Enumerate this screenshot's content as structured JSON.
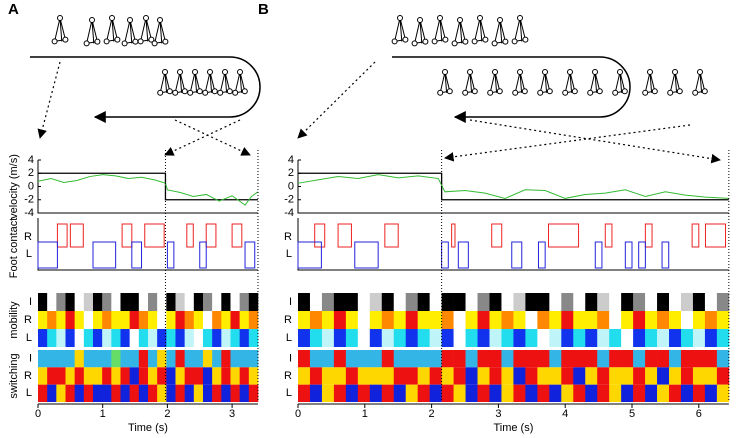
{
  "figure": {
    "palettes": {
      "mobility": [
        "#ffffff",
        "#000000",
        "#888888",
        "#cccccc",
        "#ffee00",
        "#ff8800",
        "#ee1111",
        "#22ddee",
        "#1133ee",
        "#bff4f8"
      ],
      "switching": [
        "#33b5e5",
        "#ffd700",
        "#ee1111",
        "#1122dd",
        "#66dd66"
      ]
    },
    "panels": [
      {
        "label": "A",
        "xlim": [
          0,
          3.4
        ],
        "xticks": [
          0,
          1,
          2,
          3
        ],
        "xlabel": "Time (s)",
        "switch": 1.97,
        "velocity": {
          "ylabel": "velocity (m/s)",
          "ylim": [
            -4,
            4
          ],
          "yticks": [
            -4,
            -2,
            0,
            2,
            4
          ],
          "target": [
            2,
            -2
          ],
          "t": [
            0,
            0.2,
            0.4,
            0.6,
            0.8,
            1.0,
            1.2,
            1.4,
            1.6,
            1.8,
            1.97,
            2.0,
            2.2,
            2.4,
            2.6,
            2.8,
            3.0,
            3.2,
            3.3,
            3.4
          ],
          "v": [
            0.8,
            1.2,
            0.6,
            0.9,
            1.5,
            1.8,
            1.6,
            1.2,
            1.4,
            1.0,
            0.5,
            -0.5,
            -0.9,
            -1.5,
            -1.2,
            -2.2,
            -1.4,
            -2.8,
            -1.5,
            -0.8
          ]
        },
        "foot": {
          "ylabel": "Foot contact",
          "rows": [
            "R",
            "L"
          ],
          "R": [
            [
              0.3,
              0.45
            ],
            [
              0.5,
              0.7
            ],
            [
              1.3,
              1.45
            ],
            [
              1.65,
              1.95
            ],
            [
              2.3,
              2.4
            ],
            [
              2.6,
              2.75
            ],
            [
              3.0,
              3.15
            ]
          ],
          "L": [
            [
              0,
              0.3
            ],
            [
              0.85,
              1.2
            ],
            [
              1.45,
              1.6
            ],
            [
              2.0,
              2.1
            ],
            [
              2.5,
              2.6
            ],
            [
              3.2,
              3.35
            ]
          ]
        },
        "mobility": {
          "ylabel": "mobility",
          "rows": [
            "I",
            "R",
            "L"
          ],
          "codes": [
            [
              1,
              0,
              2,
              1,
              0,
              3,
              1,
              2,
              0,
              1,
              1,
              0,
              2,
              0,
              1,
              3,
              0,
              1,
              2,
              0,
              1,
              0,
              2,
              1
            ],
            [
              4,
              5,
              4,
              6,
              4,
              0,
              4,
              5,
              4,
              4,
              6,
              5,
              4,
              0,
              4,
              6,
              5,
              4,
              0,
              5,
              4,
              6,
              4,
              5
            ],
            [
              8,
              7,
              9,
              8,
              0,
              7,
              8,
              9,
              7,
              8,
              0,
              7,
              9,
              8,
              7,
              8,
              9,
              0,
              7,
              8,
              9,
              7,
              8,
              7
            ]
          ]
        },
        "switching": {
          "ylabel": "switching",
          "rows": [
            "I",
            "R",
            "L"
          ],
          "codes": [
            [
              0,
              0,
              0,
              0,
              1,
              0,
              0,
              0,
              4,
              0,
              0,
              2,
              0,
              1,
              0,
              2,
              0,
              0,
              1,
              0,
              2,
              0,
              0,
              0
            ],
            [
              1,
              2,
              2,
              1,
              2,
              1,
              1,
              2,
              1,
              2,
              3,
              2,
              1,
              2,
              3,
              1,
              2,
              2,
              3,
              1,
              2,
              1,
              2,
              1
            ],
            [
              2,
              3,
              1,
              2,
              3,
              2,
              3,
              3,
              2,
              3,
              2,
              3,
              2,
              1,
              3,
              2,
              3,
              1,
              3,
              2,
              3,
              2,
              3,
              2
            ]
          ]
        }
      },
      {
        "label": "B",
        "xlim": [
          0,
          6.45
        ],
        "xticks": [
          0,
          1,
          2,
          3,
          4,
          5,
          6
        ],
        "xlabel": "Time (s)",
        "switch": 2.15,
        "velocity": {
          "ylim": [
            -4,
            4
          ],
          "yticks": [
            -4,
            -2,
            0,
            2,
            4
          ],
          "target": [
            2,
            -2
          ],
          "t": [
            0,
            0.3,
            0.6,
            0.9,
            1.2,
            1.5,
            1.8,
            2.1,
            2.2,
            2.5,
            2.8,
            3.1,
            3.4,
            3.7,
            4.0,
            4.3,
            4.6,
            4.9,
            5.2,
            5.5,
            5.8,
            6.1,
            6.45
          ],
          "v": [
            0.5,
            1.0,
            1.5,
            1.2,
            1.8,
            1.3,
            1.6,
            1.2,
            -0.8,
            -0.6,
            -1.0,
            -1.8,
            -0.5,
            -0.6,
            -1.8,
            -1.2,
            -1.0,
            -0.5,
            -1.5,
            -0.8,
            -1.3,
            -1.6,
            -1.8
          ]
        },
        "foot": {
          "rows": [
            "R",
            "L"
          ],
          "R": [
            [
              0.25,
              0.4
            ],
            [
              0.6,
              0.8
            ],
            [
              1.3,
              1.5
            ],
            [
              2.3,
              2.35
            ],
            [
              2.9,
              3.05
            ],
            [
              3.75,
              4.2
            ],
            [
              4.6,
              4.7
            ],
            [
              5.2,
              5.3
            ],
            [
              5.9,
              6.0
            ],
            [
              6.1,
              6.4
            ]
          ],
          "L": [
            [
              0,
              0.35
            ],
            [
              0.85,
              1.2
            ],
            [
              2.15,
              2.25
            ],
            [
              2.4,
              2.55
            ],
            [
              3.2,
              3.35
            ],
            [
              3.6,
              3.7
            ],
            [
              4.45,
              4.55
            ],
            [
              4.9,
              5.0
            ],
            [
              5.1,
              5.2
            ],
            [
              5.45,
              5.55
            ]
          ]
        },
        "mobility": {
          "rows": [
            "I",
            "R",
            "L"
          ],
          "codes": [
            [
              1,
              0,
              2,
              1,
              1,
              0,
              3,
              1,
              0,
              2,
              1,
              0,
              1,
              1,
              0,
              2,
              1,
              0,
              3,
              1,
              1,
              0,
              2,
              0,
              1,
              3,
              0,
              1,
              2,
              0,
              1,
              0,
              3,
              1,
              0,
              2
            ],
            [
              4,
              5,
              4,
              6,
              4,
              0,
              4,
              5,
              4,
              6,
              4,
              4,
              5,
              0,
              4,
              6,
              4,
              5,
              4,
              0,
              5,
              4,
              6,
              4,
              4,
              5,
              0,
              4,
              6,
              4,
              5,
              4,
              0,
              4,
              5,
              4
            ],
            [
              8,
              7,
              9,
              8,
              7,
              0,
              8,
              9,
              7,
              8,
              7,
              9,
              8,
              0,
              7,
              8,
              9,
              7,
              8,
              7,
              0,
              9,
              8,
              7,
              8,
              9,
              7,
              0,
              8,
              7,
              9,
              8,
              7,
              9,
              8,
              7
            ]
          ]
        },
        "switching": {
          "rows": [
            "I",
            "R",
            "L"
          ],
          "codes": [
            [
              2,
              0,
              0,
              2,
              0,
              0,
              0,
              2,
              0,
              0,
              0,
              0,
              2,
              2,
              0,
              2,
              2,
              0,
              2,
              2,
              2,
              0,
              2,
              2,
              2,
              0,
              2,
              2,
              0,
              2,
              2,
              0,
              2,
              2,
              2,
              0
            ],
            [
              1,
              2,
              1,
              1,
              2,
              1,
              1,
              1,
              2,
              2,
              1,
              2,
              1,
              2,
              3,
              1,
              2,
              1,
              3,
              2,
              1,
              1,
              2,
              3,
              1,
              2,
              1,
              1,
              2,
              1,
              3,
              1,
              2,
              1,
              1,
              2
            ],
            [
              2,
              3,
              1,
              2,
              3,
              2,
              3,
              2,
              3,
              1,
              2,
              3,
              2,
              1,
              3,
              2,
              3,
              1,
              2,
              3,
              2,
              3,
              1,
              2,
              3,
              2,
              1,
              3,
              2,
              3,
              1,
              2,
              3,
              2,
              3,
              1
            ]
          ]
        }
      }
    ]
  }
}
